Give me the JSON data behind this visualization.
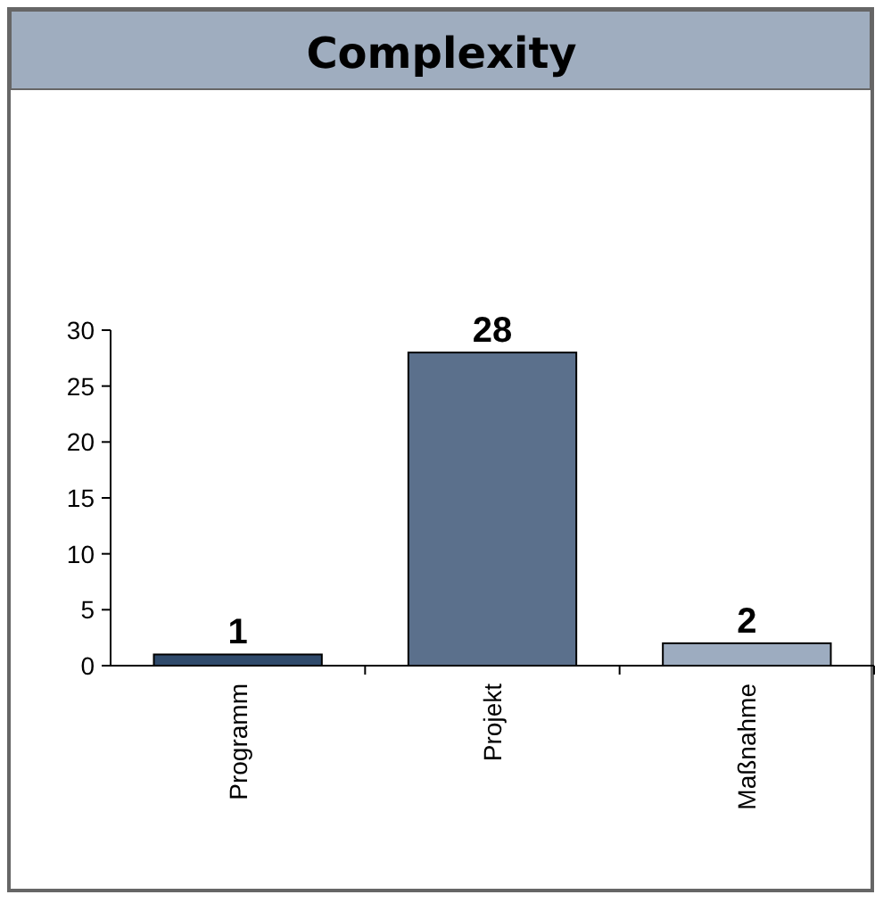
{
  "chart_data": {
    "type": "bar",
    "title": "Complexity",
    "categories": [
      "Programm",
      "Projekt",
      "Maßnahme"
    ],
    "values": [
      1,
      28,
      2
    ],
    "colors": [
      "#2f4a6b",
      "#5b708c",
      "#9dacc0"
    ],
    "ylim": [
      0,
      30
    ],
    "yticks": [
      0,
      5,
      10,
      15,
      20,
      25,
      30
    ],
    "data_labels": true
  }
}
